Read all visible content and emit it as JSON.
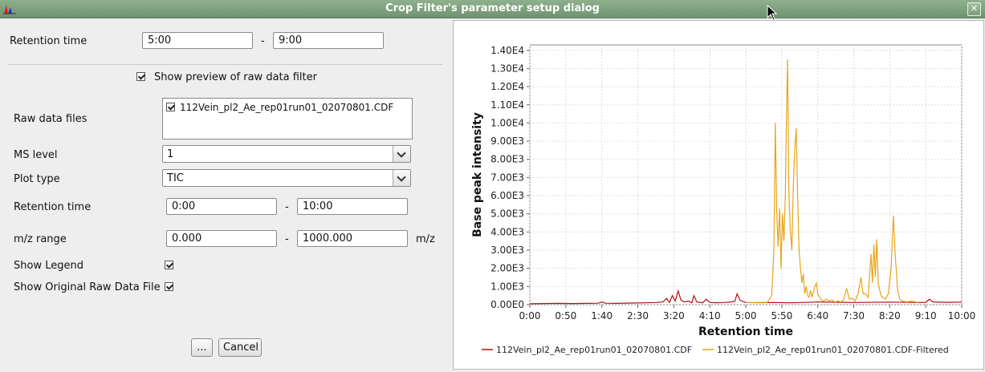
{
  "window": {
    "title": "Crop Filter's parameter setup dialog",
    "close_glyph": "✕",
    "icon": "chromatogram-app-icon"
  },
  "crop": {
    "label": "Retention time",
    "from": "5:00",
    "dash": "-",
    "to": "9:00"
  },
  "preview": {
    "show_label": "Show preview of raw data filter",
    "show_checked": true,
    "raw_files_label": "Raw data files",
    "raw_files": [
      "112Vein_pl2_Ae_rep01run01_02070801.CDF"
    ],
    "ms_level_label": "MS level",
    "ms_level_value": "1",
    "plot_type_label": "Plot type",
    "plot_type_value": "TIC",
    "rt_label": "Retention time",
    "rt_from": "0:00",
    "rt_to": "10:00",
    "mz_label": "m/z range",
    "mz_from": "0.000",
    "mz_to": "1000.000",
    "mz_unit": "m/z",
    "dash": "-",
    "show_legend_label": "Show Legend",
    "show_legend_checked": true,
    "show_original_label": "Show Original Raw Data File",
    "show_original_checked": true
  },
  "buttons": {
    "more": "...",
    "cancel": "Cancel"
  },
  "chart_data": {
    "type": "line",
    "xlabel": "Retention time",
    "ylabel": "Base peak intensity",
    "xlim": [
      0,
      600
    ],
    "ylim": [
      0,
      14300
    ],
    "x_ticks": [
      {
        "v": 0,
        "t": "0:00"
      },
      {
        "v": 50,
        "t": "0:50"
      },
      {
        "v": 100,
        "t": "1:40"
      },
      {
        "v": 150,
        "t": "2:30"
      },
      {
        "v": 200,
        "t": "3:20"
      },
      {
        "v": 250,
        "t": "4:10"
      },
      {
        "v": 300,
        "t": "5:00"
      },
      {
        "v": 350,
        "t": "5:50"
      },
      {
        "v": 400,
        "t": "6:40"
      },
      {
        "v": 450,
        "t": "7:30"
      },
      {
        "v": 500,
        "t": "8:20"
      },
      {
        "v": 550,
        "t": "9:10"
      },
      {
        "v": 600,
        "t": "10:00"
      }
    ],
    "y_ticks": [
      {
        "v": 0,
        "t": "0.00E0"
      },
      {
        "v": 1000,
        "t": "1.00E3"
      },
      {
        "v": 2000,
        "t": "2.00E3"
      },
      {
        "v": 3000,
        "t": "3.00E3"
      },
      {
        "v": 4000,
        "t": "4.00E3"
      },
      {
        "v": 5000,
        "t": "5.00E3"
      },
      {
        "v": 6000,
        "t": "6.00E3"
      },
      {
        "v": 7000,
        "t": "7.00E3"
      },
      {
        "v": 8000,
        "t": "8.00E3"
      },
      {
        "v": 9000,
        "t": "9.00E3"
      },
      {
        "v": 10000,
        "t": "1.00E4"
      },
      {
        "v": 11000,
        "t": "1.10E4"
      },
      {
        "v": 12000,
        "t": "1.20E4"
      },
      {
        "v": 13000,
        "t": "1.30E4"
      },
      {
        "v": 14000,
        "t": "1.40E4"
      }
    ],
    "grid": true,
    "legend": "bottom",
    "series": [
      {
        "name": "112Vein_pl2_Ae_rep01run01_02070801.CDF",
        "color": "#b01010",
        "points": [
          [
            0,
            50
          ],
          [
            20,
            60
          ],
          [
            40,
            70
          ],
          [
            60,
            60
          ],
          [
            80,
            70
          ],
          [
            95,
            80
          ],
          [
            100,
            150
          ],
          [
            105,
            80
          ],
          [
            120,
            70
          ],
          [
            140,
            90
          ],
          [
            160,
            100
          ],
          [
            175,
            120
          ],
          [
            185,
            150
          ],
          [
            190,
            350
          ],
          [
            194,
            120
          ],
          [
            198,
            500
          ],
          [
            202,
            200
          ],
          [
            206,
            750
          ],
          [
            210,
            250
          ],
          [
            215,
            150
          ],
          [
            220,
            200
          ],
          [
            225,
            100
          ],
          [
            228,
            500
          ],
          [
            232,
            150
          ],
          [
            240,
            100
          ],
          [
            245,
            300
          ],
          [
            250,
            120
          ],
          [
            260,
            100
          ],
          [
            270,
            120
          ],
          [
            280,
            150
          ],
          [
            285,
            200
          ],
          [
            288,
            600
          ],
          [
            292,
            250
          ],
          [
            297,
            150
          ],
          [
            300,
            120
          ],
          [
            320,
            110
          ],
          [
            340,
            120
          ],
          [
            360,
            100
          ],
          [
            380,
            120
          ],
          [
            400,
            150
          ],
          [
            450,
            120
          ],
          [
            500,
            140
          ],
          [
            540,
            120
          ],
          [
            550,
            130
          ],
          [
            555,
            300
          ],
          [
            560,
            150
          ],
          [
            580,
            130
          ],
          [
            600,
            140
          ]
        ]
      },
      {
        "name": "112Vein_pl2_Ae_rep01run01_02070801.CDF-Filtered",
        "color": "#e8a418",
        "points": [
          [
            300,
            120
          ],
          [
            310,
            110
          ],
          [
            320,
            120
          ],
          [
            330,
            130
          ],
          [
            336,
            500
          ],
          [
            339,
            3000
          ],
          [
            341,
            10000
          ],
          [
            343,
            5000
          ],
          [
            345,
            3200
          ],
          [
            347,
            5300
          ],
          [
            349,
            2000
          ],
          [
            351,
            5000
          ],
          [
            353,
            3500
          ],
          [
            355,
            6000
          ],
          [
            356,
            9000
          ],
          [
            358,
            13500
          ],
          [
            360,
            6000
          ],
          [
            362,
            4000
          ],
          [
            364,
            3000
          ],
          [
            366,
            6500
          ],
          [
            368,
            8500
          ],
          [
            370,
            9700
          ],
          [
            372,
            6000
          ],
          [
            374,
            3000
          ],
          [
            376,
            2000
          ],
          [
            378,
            1200
          ],
          [
            380,
            1700
          ],
          [
            382,
            600
          ],
          [
            384,
            1000
          ],
          [
            386,
            500
          ],
          [
            388,
            400
          ],
          [
            390,
            800
          ],
          [
            392,
            400
          ],
          [
            394,
            700
          ],
          [
            396,
            1000
          ],
          [
            398,
            1200
          ],
          [
            400,
            600
          ],
          [
            404,
            300
          ],
          [
            408,
            200
          ],
          [
            412,
            300
          ],
          [
            416,
            200
          ],
          [
            420,
            250
          ],
          [
            424,
            150
          ],
          [
            428,
            200
          ],
          [
            432,
            150
          ],
          [
            436,
            250
          ],
          [
            440,
            900
          ],
          [
            444,
            300
          ],
          [
            448,
            350
          ],
          [
            452,
            200
          ],
          [
            456,
            600
          ],
          [
            460,
            1500
          ],
          [
            463,
            600
          ],
          [
            466,
            600
          ],
          [
            470,
            400
          ],
          [
            474,
            2800
          ],
          [
            476,
            1200
          ],
          [
            478,
            3300
          ],
          [
            480,
            1500
          ],
          [
            482,
            3600
          ],
          [
            484,
            1200
          ],
          [
            486,
            800
          ],
          [
            488,
            500
          ],
          [
            490,
            400
          ],
          [
            494,
            300
          ],
          [
            498,
            600
          ],
          [
            502,
            2000
          ],
          [
            505,
            4900
          ],
          [
            508,
            2500
          ],
          [
            511,
            800
          ],
          [
            514,
            300
          ],
          [
            518,
            200
          ],
          [
            524,
            150
          ],
          [
            530,
            200
          ],
          [
            536,
            150
          ],
          [
            540,
            120
          ]
        ]
      }
    ]
  }
}
